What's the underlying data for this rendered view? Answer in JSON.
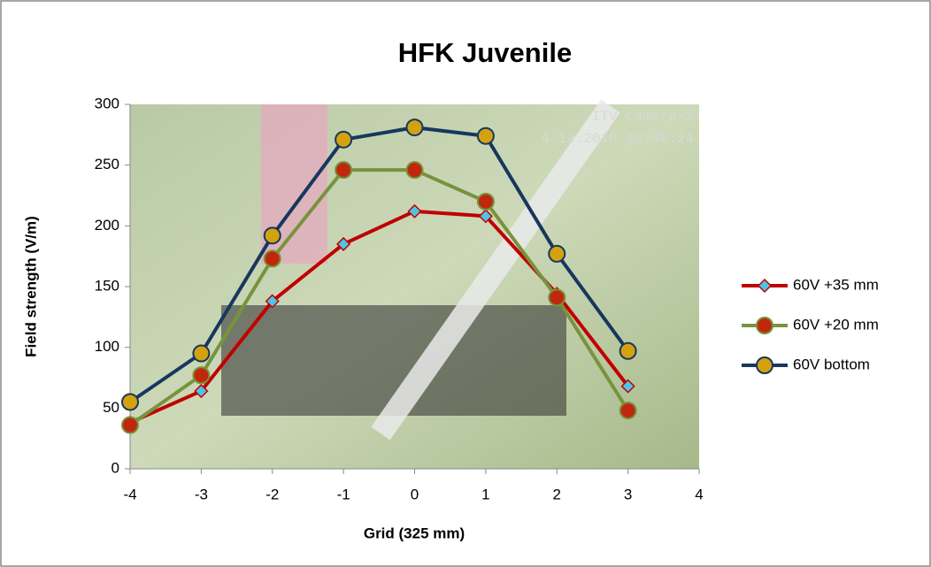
{
  "chart_data": {
    "type": "line",
    "title": "HFK Juvenile",
    "x_label": "Grid (325 mm)",
    "y_label": "Field strength (V/m)",
    "annotations": [
      "ITV Camera 2",
      "4.12.2010 10:48:24"
    ],
    "x": [
      -4,
      -3,
      -2,
      -1,
      0,
      1,
      2,
      3
    ],
    "series": [
      {
        "name": "60V +35 mm",
        "color": "#c00000",
        "marker": "diamond",
        "marker_color": "#4bc6e6",
        "values": [
          38,
          64,
          138,
          185,
          212,
          208,
          144,
          68
        ]
      },
      {
        "name": "60V +20 mm",
        "color": "#77933c",
        "marker": "circle",
        "marker_color": "#c0280e",
        "values": [
          36,
          77,
          173,
          246,
          246,
          220,
          141,
          48
        ]
      },
      {
        "name": "60V bottom",
        "color": "#17375e",
        "marker": "circle",
        "marker_color": "#d4a20f",
        "values": [
          55,
          95,
          192,
          271,
          281,
          274,
          177,
          97
        ]
      }
    ],
    "xlim": [
      -4,
      4
    ],
    "xticks": [
      -4,
      -3,
      -2,
      -1,
      0,
      1,
      2,
      3,
      4
    ],
    "ylim": [
      0,
      300
    ],
    "yticks": [
      0,
      50,
      100,
      150,
      200,
      250,
      300
    ],
    "legend": "right"
  }
}
